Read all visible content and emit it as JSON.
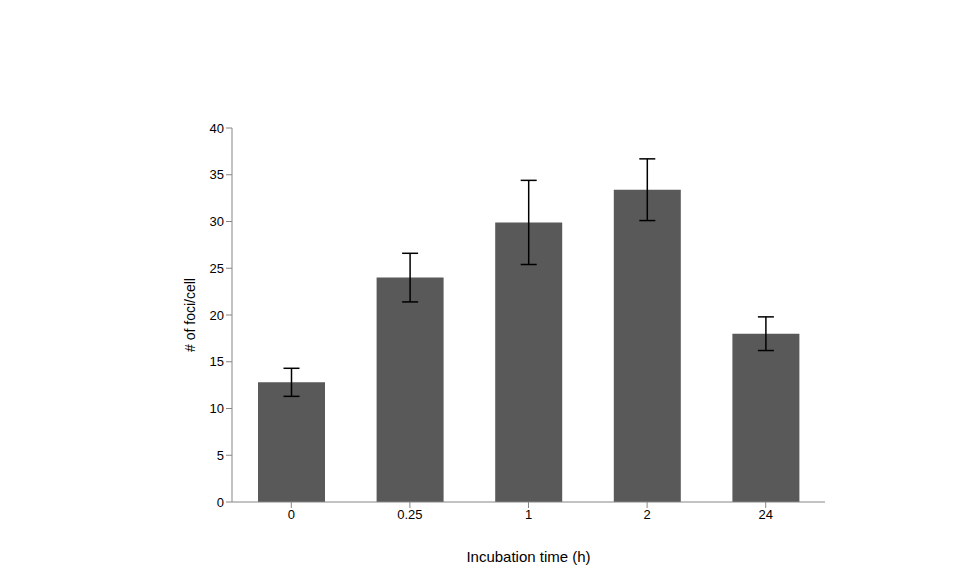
{
  "chart_data": {
    "type": "bar",
    "x_label": "Incubation time (h)",
    "y_label": "# of foci/cell",
    "categories": [
      "0",
      "0.25",
      "1",
      "2",
      "24"
    ],
    "values": [
      12.8,
      24.0,
      29.9,
      33.4,
      18.0
    ],
    "errors": [
      1.5,
      2.6,
      4.5,
      3.3,
      1.8
    ],
    "color": "#595959",
    "ylim": [
      0,
      40
    ],
    "yticks": [
      0,
      5,
      10,
      15,
      20,
      25,
      30,
      35,
      40
    ],
    "grid": false
  }
}
